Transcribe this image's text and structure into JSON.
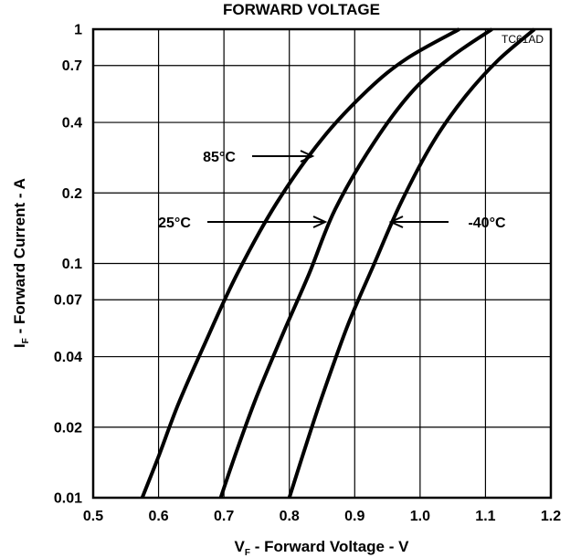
{
  "chart_data": {
    "type": "line",
    "title": "FORWARD VOLTAGE",
    "figure_id": "TC61AD",
    "xlabel": {
      "main": "V",
      "subscript": "F",
      "rest": " - Forward Voltage - V"
    },
    "ylabel": {
      "main": "I",
      "subscript": "F",
      "rest": " - Forward Current - A"
    },
    "xlim": [
      0.5,
      1.2
    ],
    "ylim": [
      0.01,
      1
    ],
    "yscale": "log",
    "grid": true,
    "x_ticks": [
      {
        "value": 0.5,
        "label": "0.5"
      },
      {
        "value": 0.6,
        "label": "0.6"
      },
      {
        "value": 0.7,
        "label": "0.7"
      },
      {
        "value": 0.8,
        "label": "0.8"
      },
      {
        "value": 0.9,
        "label": "0.9"
      },
      {
        "value": 1.0,
        "label": "1.0"
      },
      {
        "value": 1.1,
        "label": "1.1"
      },
      {
        "value": 1.2,
        "label": "1.2"
      }
    ],
    "y_ticks": [
      {
        "value": 0.01,
        "label": "0.01"
      },
      {
        "value": 0.02,
        "label": "0.02"
      },
      {
        "value": 0.04,
        "label": "0.04"
      },
      {
        "value": 0.07,
        "label": "0.07"
      },
      {
        "value": 0.1,
        "label": "0.1"
      },
      {
        "value": 0.2,
        "label": "0.2"
      },
      {
        "value": 0.4,
        "label": "0.4"
      },
      {
        "value": 0.7,
        "label": "0.7"
      },
      {
        "value": 1,
        "label": "1"
      }
    ],
    "series": [
      {
        "name": "85°C",
        "x": [
          0.575,
          0.6,
          0.63,
          0.67,
          0.72,
          0.78,
          0.85,
          0.92,
          0.98,
          1.06
        ],
        "y": [
          0.01,
          0.015,
          0.025,
          0.045,
          0.09,
          0.18,
          0.34,
          0.55,
          0.75,
          1.0
        ]
      },
      {
        "name": "25°C",
        "x": [
          0.695,
          0.72,
          0.75,
          0.79,
          0.83,
          0.87,
          0.93,
          0.99,
          1.05,
          1.11
        ],
        "y": [
          0.01,
          0.016,
          0.027,
          0.05,
          0.09,
          0.17,
          0.33,
          0.55,
          0.77,
          1.0
        ]
      },
      {
        "name": "-40°C",
        "x": [
          0.8,
          0.82,
          0.85,
          0.89,
          0.93,
          0.97,
          1.02,
          1.07,
          1.12,
          1.175
        ],
        "y": [
          0.01,
          0.015,
          0.027,
          0.055,
          0.1,
          0.18,
          0.33,
          0.52,
          0.74,
          1.0
        ]
      }
    ],
    "annotations": [
      {
        "text": "85°C",
        "series": "85°C"
      },
      {
        "text": "25°C",
        "series": "25°C"
      },
      {
        "text": "-40°C",
        "series": "-40°C"
      }
    ]
  }
}
